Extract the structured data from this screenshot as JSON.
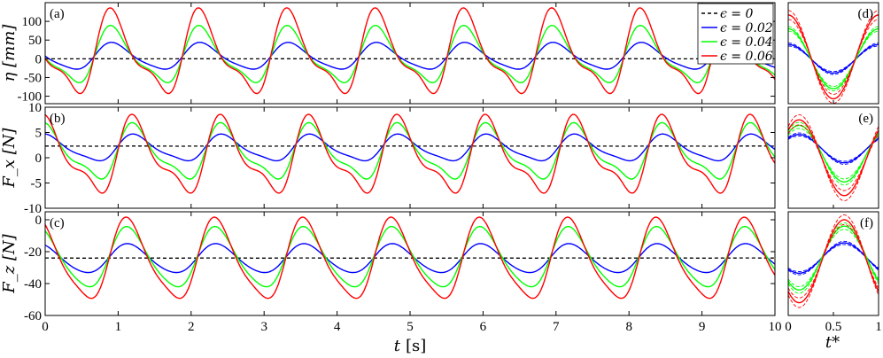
{
  "chart_data": [
    {
      "panel": "(a)",
      "type": "line",
      "ylabel": "η [mm]",
      "ylim": [
        -120,
        150
      ],
      "yticks": [
        -100,
        -50,
        0,
        50,
        100
      ],
      "ytick_labels": [
        "-100",
        "-50",
        "0",
        "50",
        "100"
      ],
      "xlim": [
        0,
        10
      ],
      "wave": {
        "period": 1.21,
        "phase_t": 0.65
      },
      "series": [
        {
          "name": "ϵ = 0",
          "color": "#000000",
          "dash": true,
          "mean": 0,
          "amp": 0,
          "nl": 0
        },
        {
          "name": "ϵ = 0.02",
          "color": "#0000ff",
          "dash": false,
          "mean": 5,
          "amp": 38,
          "nl": 0.2
        },
        {
          "name": "ϵ = 0.04",
          "color": "#00ff00",
          "dash": false,
          "mean": 5,
          "amp": 80,
          "nl": 0.32
        },
        {
          "name": "ϵ = 0.06",
          "color": "#ff0000",
          "dash": false,
          "mean": 10,
          "amp": 118,
          "nl": 0.38
        }
      ],
      "legend": "top-right"
    },
    {
      "panel": "(b)",
      "type": "line",
      "ylabel": "F_x [N]",
      "ylim": [
        -10,
        10
      ],
      "yticks": [
        -10,
        -5,
        0,
        5,
        10
      ],
      "ytick_labels": [
        "-10",
        "-5",
        "0",
        "5",
        "10"
      ],
      "xlim": [
        0,
        10
      ],
      "wave": {
        "period": 1.21,
        "phase_t": 0.95
      },
      "series": [
        {
          "name": "ϵ = 0",
          "color": "#000000",
          "dash": true,
          "mean": 2.3,
          "amp": 0,
          "nl": 0
        },
        {
          "name": "ϵ = 0.02",
          "color": "#0000ff",
          "dash": false,
          "mean": 1.8,
          "amp": 2.8,
          "nl": 0.25
        },
        {
          "name": "ϵ = 0.04",
          "color": "#00ff00",
          "dash": false,
          "mean": 0.8,
          "amp": 5.8,
          "nl": 0.35
        },
        {
          "name": "ϵ = 0.06",
          "color": "#ff0000",
          "dash": false,
          "mean": 0.0,
          "amp": 8.0,
          "nl": 0.4
        }
      ]
    },
    {
      "panel": "(c)",
      "type": "line",
      "ylabel": "F_z [N]",
      "ylim": [
        -60,
        5
      ],
      "yticks": [
        -60,
        -40,
        -20,
        0
      ],
      "ytick_labels": [
        "-60",
        "-40",
        "-20",
        "0"
      ],
      "xlim": [
        0,
        10
      ],
      "wave": {
        "period": 1.21,
        "phase_t": 0.85
      },
      "series": [
        {
          "name": "ϵ = 0",
          "color": "#000000",
          "dash": true,
          "mean": -24,
          "amp": 0,
          "nl": 0
        },
        {
          "name": "ϵ = 0.02",
          "color": "#0000ff",
          "dash": false,
          "mean": -24.5,
          "amp": 9.5,
          "nl": 0.1
        },
        {
          "name": "ϵ = 0.04",
          "color": "#00ff00",
          "dash": false,
          "mean": -24.5,
          "amp": 20,
          "nl": 0.15
        },
        {
          "name": "ϵ = 0.06",
          "color": "#ff0000",
          "dash": false,
          "mean": -26,
          "amp": 27,
          "nl": 0.2
        }
      ]
    }
  ],
  "phase_panels": [
    {
      "panel": "(d)",
      "ylim": [
        -120,
        150
      ],
      "phase": 0.0,
      "series": [
        {
          "color": "#0000ff",
          "mean": 0,
          "amp": 38,
          "band": 4
        },
        {
          "color": "#00ff00",
          "mean": 0,
          "amp": 80,
          "band": 6
        },
        {
          "color": "#ff0000",
          "mean": 5,
          "amp": 112,
          "band": 12
        }
      ]
    },
    {
      "panel": "(e)",
      "ylim": [
        -10,
        10
      ],
      "phase": 0.12,
      "series": [
        {
          "color": "#0000ff",
          "mean": 1.8,
          "amp": 2.8,
          "band": 0.3
        },
        {
          "color": "#00ff00",
          "mean": 0.8,
          "amp": 5.6,
          "band": 0.6
        },
        {
          "color": "#ff0000",
          "mean": 0.0,
          "amp": 7.5,
          "band": 1.0
        }
      ]
    },
    {
      "panel": "(f)",
      "ylim": [
        -60,
        5
      ],
      "phase": 0.62,
      "series": [
        {
          "color": "#0000ff",
          "mean": -24,
          "amp": 9.5,
          "band": 1
        },
        {
          "color": "#00ff00",
          "mean": -24,
          "amp": 20,
          "band": 2
        },
        {
          "color": "#ff0000",
          "mean": -26,
          "amp": 26,
          "band": 3
        }
      ]
    }
  ],
  "xaxis": {
    "label_var": "t",
    "label_unit": "[s]",
    "ticks": [
      0,
      1,
      2,
      3,
      4,
      5,
      6,
      7,
      8,
      9,
      10
    ],
    "tick_labels": [
      "0",
      "1",
      "2",
      "3",
      "4",
      "5",
      "6",
      "7",
      "8",
      "9",
      "10"
    ]
  },
  "phase_xaxis": {
    "label": "t*",
    "tick_labels": [
      "0",
      "0.5",
      "1"
    ]
  },
  "legend_entries": [
    "ϵ = 0",
    "ϵ = 0.02",
    "ϵ = 0.04",
    "ϵ = 0.06"
  ]
}
